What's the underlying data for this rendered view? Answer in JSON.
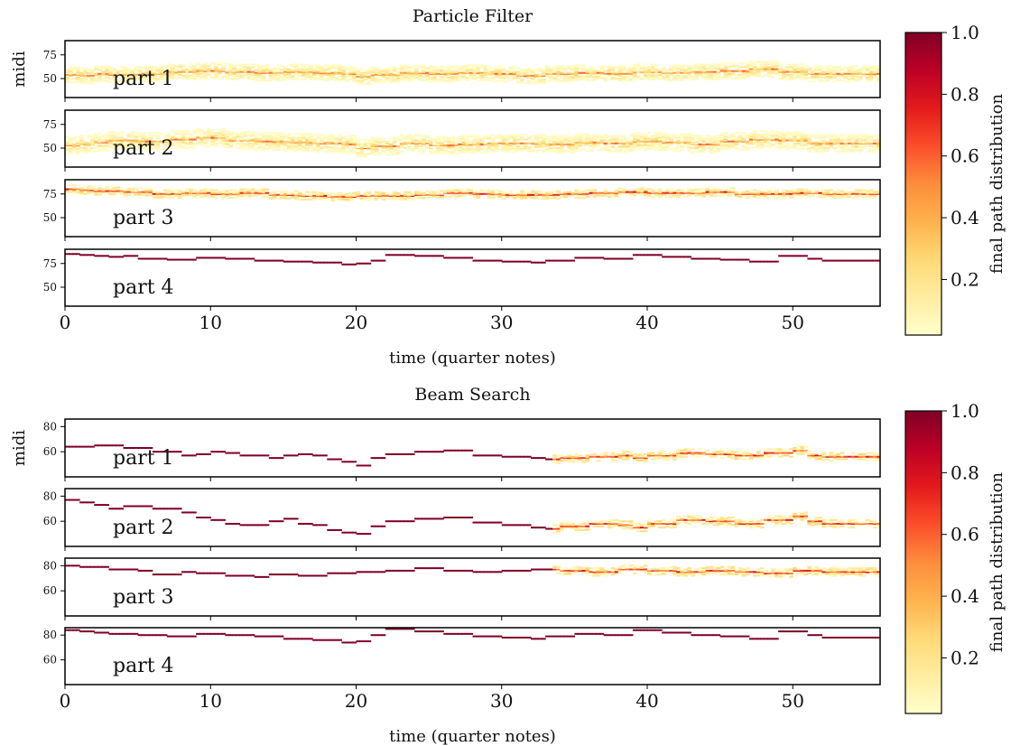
{
  "chart_data": [
    {
      "type": "heatmap",
      "title": "Particle Filter",
      "xlabel": "time (quarter notes)",
      "ylabel": "midi",
      "xlim": [
        0,
        56
      ],
      "xticks": [
        0,
        10,
        20,
        30,
        40,
        50
      ],
      "ylim": [
        30,
        90
      ],
      "yticks": [
        50,
        75
      ],
      "colorbar": {
        "label": "final path distribution",
        "range": [
          0.02,
          1.0
        ],
        "ticks": [
          0.2,
          0.4,
          0.6,
          0.8,
          1.0
        ],
        "colormap": "YlOrRd"
      },
      "parts": [
        {
          "label": "part 1",
          "center": 58,
          "spread": 8,
          "certainty": 0.25,
          "path": [
            [
              0,
              54
            ],
            [
              1,
              53
            ],
            [
              2,
              55
            ],
            [
              3,
              54
            ],
            [
              5,
              55
            ],
            [
              7,
              57
            ],
            [
              9,
              58
            ],
            [
              11,
              57
            ],
            [
              13,
              56
            ],
            [
              15,
              57
            ],
            [
              17,
              56
            ],
            [
              19,
              55
            ],
            [
              20,
              52
            ],
            [
              21,
              54
            ],
            [
              23,
              56
            ],
            [
              25,
              55
            ],
            [
              27,
              56
            ],
            [
              29,
              55
            ],
            [
              31,
              53
            ],
            [
              33,
              55
            ],
            [
              35,
              56
            ],
            [
              37,
              55
            ],
            [
              39,
              57
            ],
            [
              41,
              56
            ],
            [
              43,
              57
            ],
            [
              45,
              58
            ],
            [
              47,
              60
            ],
            [
              49,
              57
            ],
            [
              51,
              55
            ],
            [
              53,
              55
            ]
          ]
        },
        {
          "label": "part 2",
          "center": 56,
          "spread": 9,
          "certainty": 0.25,
          "path": [
            [
              0,
              53
            ],
            [
              1,
              54
            ],
            [
              2,
              56
            ],
            [
              3,
              58
            ],
            [
              5,
              57
            ],
            [
              7,
              59
            ],
            [
              9,
              61
            ],
            [
              11,
              58
            ],
            [
              13,
              57
            ],
            [
              15,
              56
            ],
            [
              17,
              55
            ],
            [
              19,
              54
            ],
            [
              20,
              50
            ],
            [
              21,
              52
            ],
            [
              23,
              55
            ],
            [
              25,
              53
            ],
            [
              27,
              54
            ],
            [
              29,
              55
            ],
            [
              31,
              55
            ],
            [
              33,
              54
            ],
            [
              35,
              56
            ],
            [
              37,
              55
            ],
            [
              39,
              57
            ],
            [
              41,
              56
            ],
            [
              43,
              54
            ],
            [
              45,
              57
            ],
            [
              47,
              59
            ],
            [
              49,
              58
            ],
            [
              51,
              55
            ],
            [
              53,
              55
            ]
          ]
        },
        {
          "label": "part 3",
          "center": 75,
          "spread": 4,
          "certainty": 0.45,
          "path": [
            [
              0,
              80
            ],
            [
              1,
              79
            ],
            [
              2,
              78
            ],
            [
              4,
              77
            ],
            [
              6,
              75
            ],
            [
              8,
              76
            ],
            [
              10,
              75
            ],
            [
              12,
              76
            ],
            [
              14,
              74
            ],
            [
              16,
              73
            ],
            [
              18,
              72
            ],
            [
              20,
              73
            ],
            [
              22,
              73
            ],
            [
              24,
              74
            ],
            [
              26,
              76
            ],
            [
              28,
              75
            ],
            [
              30,
              74
            ],
            [
              32,
              74
            ],
            [
              34,
              75
            ],
            [
              36,
              76
            ],
            [
              38,
              77
            ],
            [
              40,
              76
            ],
            [
              42,
              76
            ],
            [
              44,
              77
            ],
            [
              46,
              75
            ],
            [
              48,
              75
            ],
            [
              50,
              76
            ],
            [
              52,
              75
            ],
            [
              54,
              75
            ]
          ]
        },
        {
          "label": "part 4",
          "center": 80,
          "spread": 1,
          "certainty": 1.0,
          "path": [
            [
              0,
              85
            ],
            [
              1,
              84
            ],
            [
              2,
              83
            ],
            [
              3,
              82
            ],
            [
              4,
              83
            ],
            [
              5,
              80
            ],
            [
              7,
              79
            ],
            [
              9,
              81
            ],
            [
              11,
              80
            ],
            [
              13,
              78
            ],
            [
              15,
              77
            ],
            [
              17,
              76
            ],
            [
              19,
              74
            ],
            [
              20,
              75
            ],
            [
              21,
              78
            ],
            [
              22,
              84
            ],
            [
              24,
              83
            ],
            [
              26,
              81
            ],
            [
              28,
              78
            ],
            [
              30,
              77
            ],
            [
              32,
              76
            ],
            [
              33,
              78
            ],
            [
              35,
              81
            ],
            [
              37,
              80
            ],
            [
              39,
              84
            ],
            [
              41,
              82
            ],
            [
              43,
              80
            ],
            [
              45,
              79
            ],
            [
              47,
              77
            ],
            [
              49,
              83
            ],
            [
              51,
              80
            ],
            [
              52,
              78
            ],
            [
              54,
              78
            ]
          ]
        }
      ]
    },
    {
      "type": "heatmap",
      "title": "Beam Search",
      "xlabel": "time (quarter notes)",
      "ylabel": "midi",
      "xlim": [
        0,
        56
      ],
      "xticks": [
        0,
        10,
        20,
        30,
        40,
        50
      ],
      "ylim": [
        40,
        86
      ],
      "yticks": [
        60,
        80
      ],
      "colorbar": {
        "label": "final path distribution",
        "range": [
          0.02,
          1.0
        ],
        "ticks": [
          0.2,
          0.4,
          0.6,
          0.8,
          1.0
        ],
        "colormap": "YlOrRd"
      },
      "uncertain_from": 33.5,
      "parts": [
        {
          "label": "part 1",
          "center": 58,
          "spread": 3,
          "certainty": 1.0,
          "path": [
            [
              0,
              64
            ],
            [
              2,
              65
            ],
            [
              4,
              63
            ],
            [
              6,
              60
            ],
            [
              8,
              57
            ],
            [
              9,
              58
            ],
            [
              10,
              60
            ],
            [
              11,
              59
            ],
            [
              12,
              57
            ],
            [
              14,
              55
            ],
            [
              15,
              57
            ],
            [
              16,
              58
            ],
            [
              17,
              57
            ],
            [
              18,
              54
            ],
            [
              19,
              52
            ],
            [
              20,
              49
            ],
            [
              21,
              55
            ],
            [
              22,
              58
            ],
            [
              24,
              60
            ],
            [
              26,
              61
            ],
            [
              28,
              57
            ],
            [
              30,
              56
            ],
            [
              32,
              55
            ],
            [
              33,
              54
            ],
            [
              34,
              55
            ],
            [
              36,
              56
            ],
            [
              38,
              57
            ],
            [
              39,
              55
            ],
            [
              40,
              57
            ],
            [
              42,
              59
            ],
            [
              44,
              58
            ],
            [
              46,
              57
            ],
            [
              48,
              59
            ],
            [
              50,
              61
            ],
            [
              51,
              57
            ],
            [
              52,
              56
            ],
            [
              54,
              56
            ]
          ]
        },
        {
          "label": "part 2",
          "center": 58,
          "spread": 3,
          "certainty": 1.0,
          "path": [
            [
              0,
              77
            ],
            [
              1,
              75
            ],
            [
              2,
              73
            ],
            [
              3,
              70
            ],
            [
              4,
              72
            ],
            [
              6,
              70
            ],
            [
              8,
              67
            ],
            [
              9,
              63
            ],
            [
              10,
              61
            ],
            [
              11,
              58
            ],
            [
              12,
              57
            ],
            [
              14,
              60
            ],
            [
              15,
              62
            ],
            [
              16,
              58
            ],
            [
              17,
              57
            ],
            [
              18,
              53
            ],
            [
              19,
              51
            ],
            [
              20,
              50
            ],
            [
              21,
              56
            ],
            [
              22,
              60
            ],
            [
              24,
              62
            ],
            [
              26,
              63
            ],
            [
              28,
              59
            ],
            [
              30,
              57
            ],
            [
              32,
              55
            ],
            [
              33,
              54
            ],
            [
              34,
              56
            ],
            [
              36,
              58
            ],
            [
              38,
              57
            ],
            [
              39,
              55
            ],
            [
              40,
              58
            ],
            [
              42,
              61
            ],
            [
              44,
              60
            ],
            [
              46,
              58
            ],
            [
              48,
              61
            ],
            [
              50,
              64
            ],
            [
              51,
              60
            ],
            [
              52,
              58
            ],
            [
              54,
              58
            ]
          ]
        },
        {
          "label": "part 3",
          "center": 74,
          "spread": 2,
          "certainty": 1.0,
          "path": [
            [
              0,
              80
            ],
            [
              1,
              79
            ],
            [
              3,
              77
            ],
            [
              5,
              76
            ],
            [
              6,
              73
            ],
            [
              8,
              75
            ],
            [
              9,
              74
            ],
            [
              11,
              72
            ],
            [
              13,
              71
            ],
            [
              14,
              73
            ],
            [
              16,
              72
            ],
            [
              18,
              74
            ],
            [
              20,
              75
            ],
            [
              22,
              76
            ],
            [
              24,
              78
            ],
            [
              26,
              76
            ],
            [
              28,
              75
            ],
            [
              30,
              76
            ],
            [
              32,
              77
            ],
            [
              34,
              76
            ],
            [
              36,
              75
            ],
            [
              38,
              77
            ],
            [
              40,
              76
            ],
            [
              42,
              75
            ],
            [
              44,
              76
            ],
            [
              46,
              75
            ],
            [
              48,
              74
            ],
            [
              50,
              76
            ],
            [
              52,
              75
            ],
            [
              54,
              75
            ]
          ]
        },
        {
          "label": "part 4",
          "center": 80,
          "spread": 1,
          "certainty": 1.0,
          "path": [
            [
              0,
              84
            ],
            [
              1,
              83
            ],
            [
              2,
              82
            ],
            [
              3,
              81
            ],
            [
              5,
              80
            ],
            [
              7,
              79
            ],
            [
              9,
              81
            ],
            [
              11,
              80
            ],
            [
              13,
              79
            ],
            [
              15,
              77
            ],
            [
              17,
              76
            ],
            [
              19,
              74
            ],
            [
              20,
              75
            ],
            [
              21,
              80
            ],
            [
              22,
              85
            ],
            [
              24,
              83
            ],
            [
              26,
              81
            ],
            [
              28,
              79
            ],
            [
              30,
              78
            ],
            [
              32,
              77
            ],
            [
              33,
              79
            ],
            [
              35,
              81
            ],
            [
              37,
              80
            ],
            [
              39,
              84
            ],
            [
              41,
              82
            ],
            [
              43,
              80
            ],
            [
              45,
              79
            ],
            [
              47,
              77
            ],
            [
              49,
              83
            ],
            [
              51,
              80
            ],
            [
              52,
              78
            ],
            [
              54,
              78
            ]
          ]
        }
      ]
    }
  ]
}
